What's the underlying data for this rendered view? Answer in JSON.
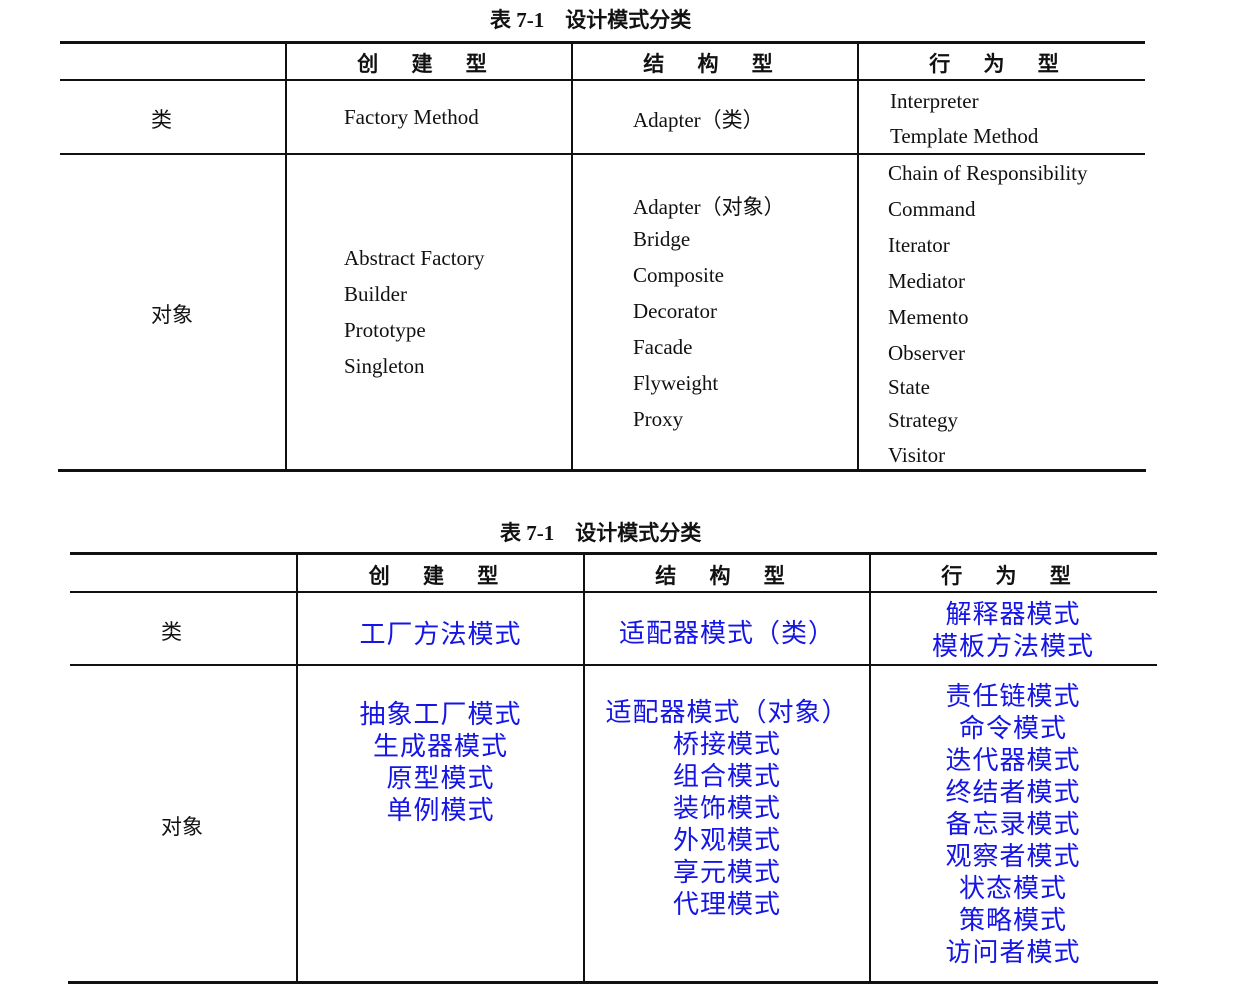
{
  "table1": {
    "title": "表 7-1    设计模式分类",
    "headers": [
      "创 建 型",
      "结 构 型",
      "行 为 型"
    ],
    "rows": [
      {
        "label": "类",
        "creational": [
          "Factory Method"
        ],
        "structural": [
          "Adapter（类）"
        ],
        "behavioral": [
          "Interpreter",
          "Template Method"
        ]
      },
      {
        "label": "对象",
        "creational": [
          "Abstract Factory",
          "Builder",
          "Prototype",
          "Singleton"
        ],
        "structural": [
          "Adapter（对象）",
          "Bridge",
          "Composite",
          "Decorator",
          "Facade",
          "Flyweight",
          "Proxy"
        ],
        "behavioral": [
          "Chain of Responsibility",
          "Command",
          "Iterator",
          "Mediator",
          "Memento",
          "Observer",
          "State",
          "Strategy",
          "Visitor"
        ]
      }
    ]
  },
  "table2": {
    "title": "表 7-1    设计模式分类",
    "headers": [
      "创 建 型",
      "结 构 型",
      "行 为 型"
    ],
    "text_color": "#1515e6",
    "rows": [
      {
        "label": "类",
        "creational": [
          "工厂方法模式"
        ],
        "structural": [
          "适配器模式（类）"
        ],
        "behavioral": [
          "解释器模式",
          "模板方法模式"
        ]
      },
      {
        "label": "对象",
        "creational": [
          "抽象工厂模式",
          "生成器模式",
          "原型模式",
          "单例模式"
        ],
        "structural": [
          "适配器模式（对象）",
          "桥接模式",
          "组合模式",
          "装饰模式",
          "外观模式",
          "享元模式",
          "代理模式"
        ],
        "behavioral": [
          "责任链模式",
          "命令模式",
          "迭代器模式",
          "终结者模式",
          "备忘录模式",
          "观察者模式",
          "状态模式",
          "策略模式",
          "访问者模式"
        ]
      }
    ]
  }
}
